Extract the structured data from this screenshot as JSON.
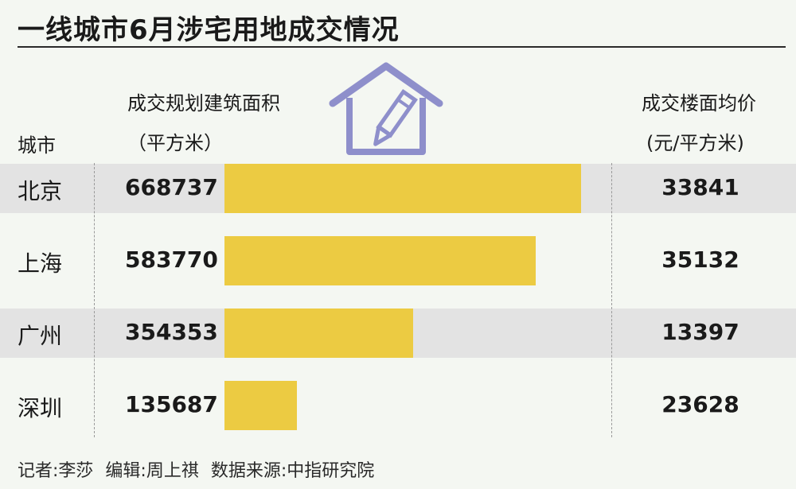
{
  "title": "一线城市6月涉宅用地成交情况",
  "headers": {
    "city": "城市",
    "area_line1": "成交规划建筑面积",
    "area_line2": "（平方米）",
    "price_line1": "成交楼面均价",
    "price_line2": "(元/平方米)"
  },
  "colors": {
    "bar": "#eccb42",
    "stripe": "#e3e3e3",
    "icon": "#8e8fcb"
  },
  "chart_data": {
    "type": "bar",
    "orientation": "horizontal",
    "categories": [
      "北京",
      "上海",
      "广州",
      "深圳"
    ],
    "series": [
      {
        "name": "成交规划建筑面积",
        "values": [
          668737,
          583770,
          354353,
          135687
        ]
      },
      {
        "name": "成交楼面均价",
        "values": [
          33841,
          35132,
          13397,
          23628
        ]
      }
    ],
    "title": "一线城市6月涉宅用地成交情况",
    "grid": false,
    "legend": "none"
  },
  "labels": {
    "area_values": [
      "668737",
      "583770",
      "354353",
      "135687"
    ],
    "price_values": [
      "33841",
      "35132",
      "13397",
      "23628"
    ]
  },
  "footer": {
    "reporter": "记者:李莎",
    "editor": "编辑:周上祺",
    "source": "数据来源:中指研究院"
  }
}
